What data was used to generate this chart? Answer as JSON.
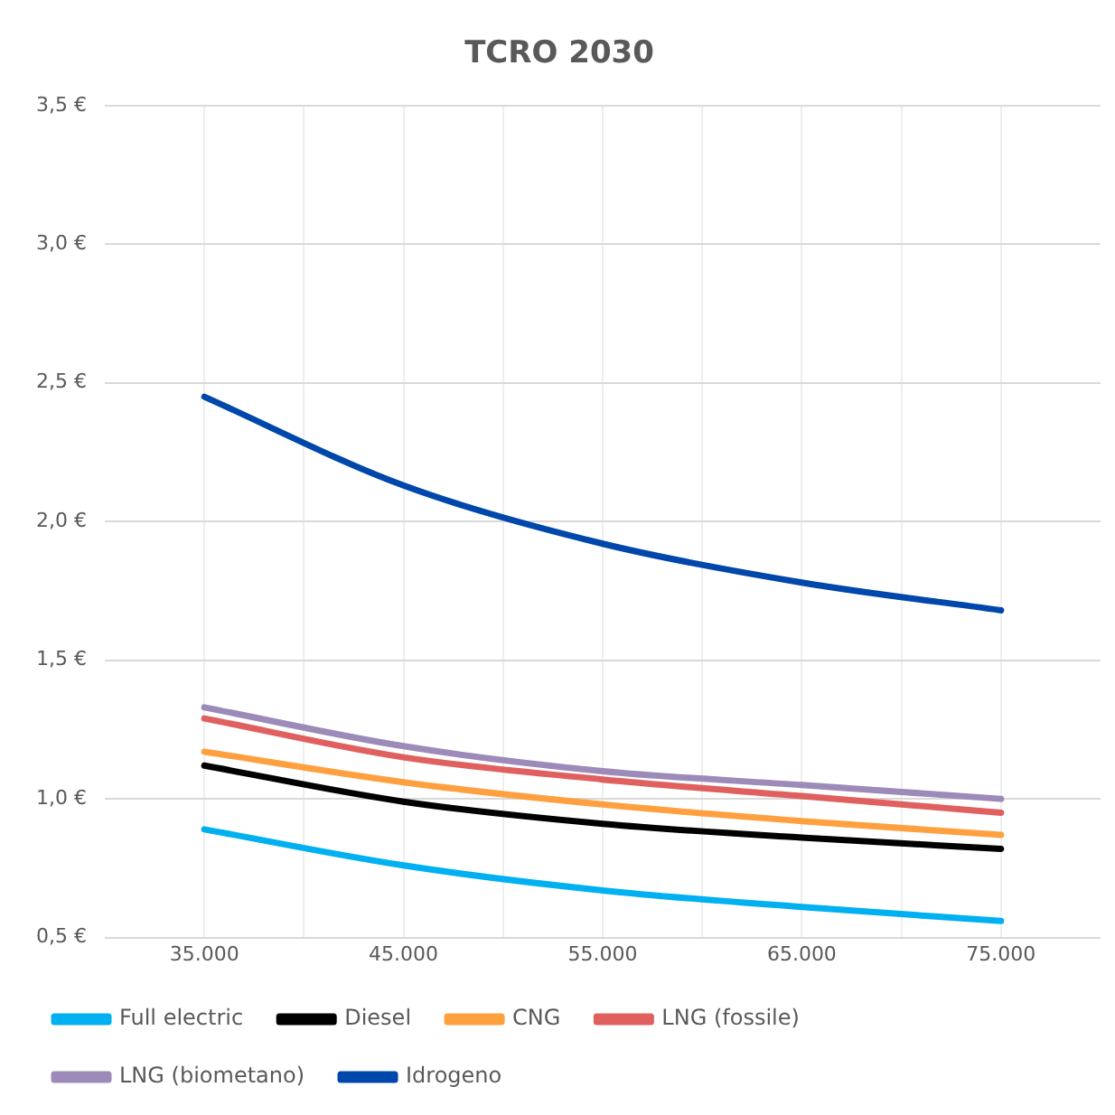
{
  "chart_data": {
    "type": "line",
    "title": "TCRO 2030",
    "x": [
      35000,
      45000,
      55000,
      65000,
      75000
    ],
    "xlim": [
      30000,
      80000
    ],
    "xticks": [
      {
        "value": 35000,
        "label": "35.000"
      },
      {
        "value": 40000,
        "label": null
      },
      {
        "value": 45000,
        "label": "45.000"
      },
      {
        "value": 50000,
        "label": null
      },
      {
        "value": 55000,
        "label": "55.000"
      },
      {
        "value": 60000,
        "label": null
      },
      {
        "value": 65000,
        "label": "65.000"
      },
      {
        "value": 70000,
        "label": null
      },
      {
        "value": 75000,
        "label": "75.000"
      }
    ],
    "ylim": [
      0.5,
      3.5
    ],
    "yticks": [
      {
        "value": 0.5,
        "label": "0,5 €"
      },
      {
        "value": 1,
        "label": "1,0 €"
      },
      {
        "value": 1.5,
        "label": "1,5 €"
      },
      {
        "value": 2,
        "label": "2,0 €"
      },
      {
        "value": 2.5,
        "label": "2,5 €"
      },
      {
        "value": 3,
        "label": "3,0 €"
      },
      {
        "value": 3.5,
        "label": "3,5 €"
      }
    ],
    "series": [
      {
        "name": "Full electric",
        "color": "#00b0f0",
        "values": [
          0.89,
          0.76,
          0.67,
          0.61,
          0.56
        ]
      },
      {
        "name": "Diesel",
        "color": "#000000",
        "values": [
          1.12,
          0.99,
          0.91,
          0.86,
          0.82
        ]
      },
      {
        "name": "CNG",
        "color": "#ffa040",
        "values": [
          1.17,
          1.06,
          0.98,
          0.92,
          0.87
        ]
      },
      {
        "name": "LNG (fossile)",
        "color": "#e06060",
        "values": [
          1.29,
          1.15,
          1.07,
          1.01,
          0.95
        ]
      },
      {
        "name": "LNG (biometano)",
        "color": "#9c8ab8",
        "values": [
          1.33,
          1.19,
          1.1,
          1.05,
          1.0
        ]
      },
      {
        "name": "Idrogeno",
        "color": "#0047ab",
        "values": [
          2.45,
          2.13,
          1.92,
          1.78,
          1.68
        ]
      }
    ],
    "grid": true,
    "legend": "bottom",
    "marker": "none",
    "line_style": "solid"
  }
}
